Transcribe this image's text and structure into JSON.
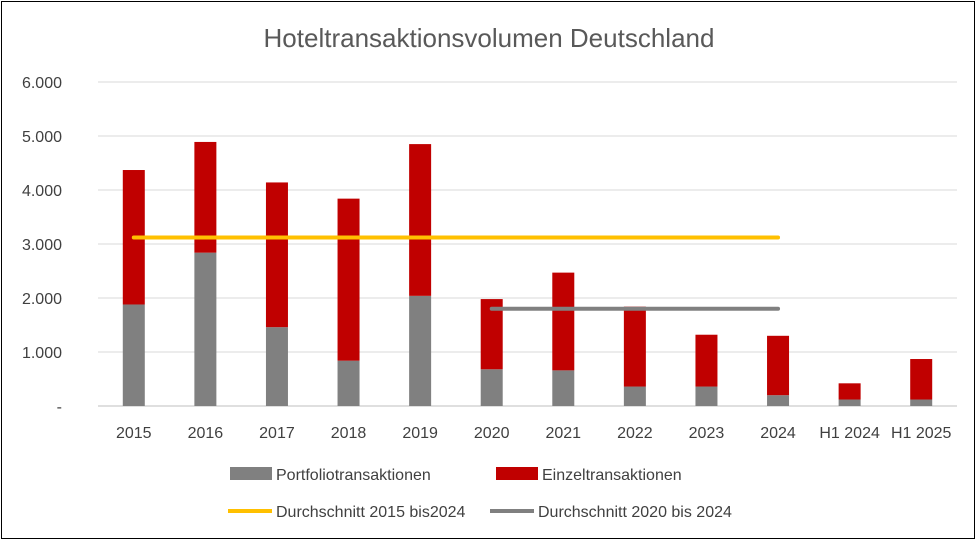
{
  "chart_data": {
    "type": "bar",
    "title": "Hoteltransaktionsvolumen Deutschland",
    "categories": [
      "2015",
      "2016",
      "2017",
      "2018",
      "2019",
      "2020",
      "2021",
      "2022",
      "2023",
      "2024",
      "H1 2024",
      "H1 2025"
    ],
    "ylim": [
      0,
      6000
    ],
    "yticks": [
      {
        "value": 0,
        "label": "-"
      },
      {
        "value": 1000,
        "label": "1.000"
      },
      {
        "value": 2000,
        "label": "2.000"
      },
      {
        "value": 3000,
        "label": "3.000"
      },
      {
        "value": 4000,
        "label": "4.000"
      },
      {
        "value": 5000,
        "label": "5.000"
      },
      {
        "value": 6000,
        "label": "6.000"
      }
    ],
    "stacked": true,
    "grid": true,
    "legend_position": "bottom",
    "series": [
      {
        "name": "Portfoliotransaktionen",
        "type": "bar",
        "color": "#808080",
        "values": [
          1880,
          2840,
          1460,
          840,
          2040,
          680,
          660,
          360,
          360,
          200,
          120,
          120
        ]
      },
      {
        "name": "Einzeltransaktionen",
        "type": "bar",
        "color": "#C00000",
        "values": [
          2490,
          2050,
          2680,
          3000,
          2810,
          1300,
          1810,
          1480,
          960,
          1100,
          300,
          750
        ]
      },
      {
        "name": "Durchschnitt 2015 bis2024",
        "type": "line",
        "color": "#FFC000",
        "value": 3120,
        "from": "2015",
        "to": "2024"
      },
      {
        "name": "Durchschnitt 2020 bis 2024",
        "type": "line",
        "color": "#808080",
        "value": 1800,
        "from": "2020",
        "to": "2024"
      }
    ]
  }
}
